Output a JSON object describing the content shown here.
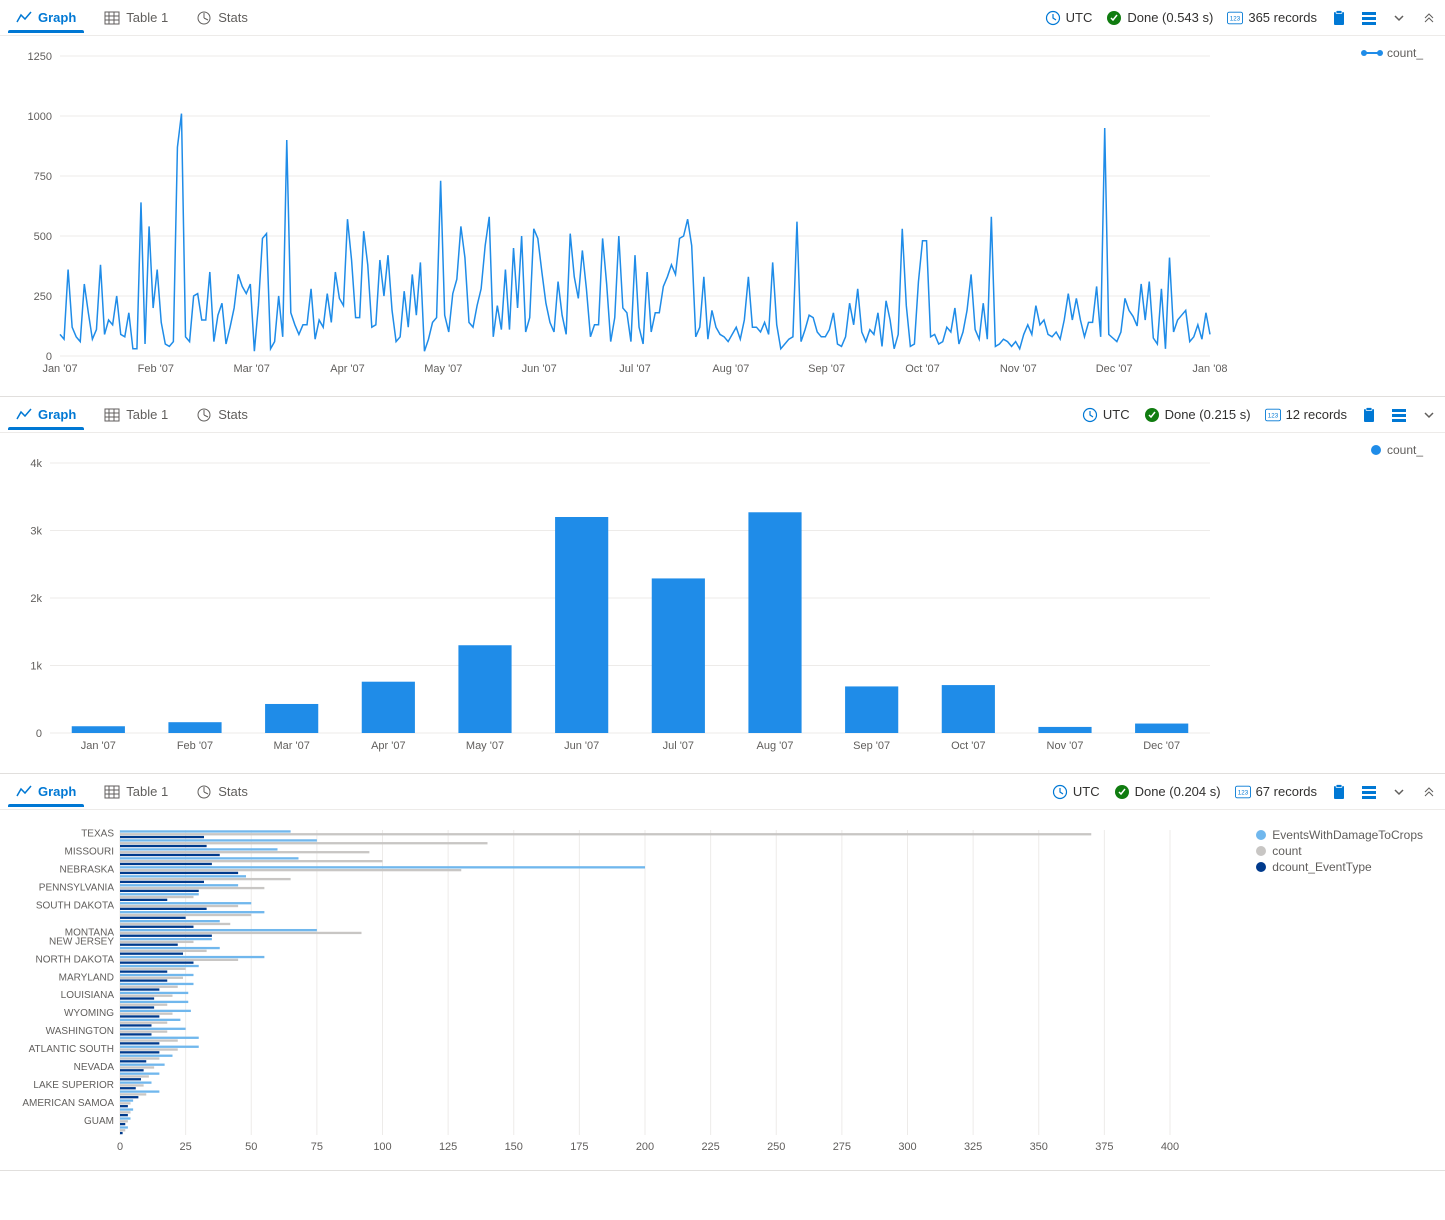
{
  "colors": {
    "primary": "#0078d4",
    "series_blue": "#1f8ce8",
    "series_light": "#70b7ed",
    "series_dark": "#003a8c",
    "series_grey": "#c8c6c4",
    "grid": "#edebe9",
    "text_muted": "#605e5c",
    "success": "#107c10"
  },
  "toolbar": {
    "graph_tab": "Graph",
    "table_tab": "Table 1",
    "stats_tab": "Stats",
    "tz": "UTC"
  },
  "panel1": {
    "done": "Done (0.543 s)",
    "records": "365 records",
    "legend": [
      "count_"
    ],
    "chart": {
      "type": "line",
      "ylim": [
        0,
        1250
      ],
      "ytick_step": 250,
      "x_labels": [
        "Jan '07",
        "Feb '07",
        "Mar '07",
        "Apr '07",
        "May '07",
        "Jun '07",
        "Jul '07",
        "Aug '07",
        "Sep '07",
        "Oct '07",
        "Nov '07",
        "Dec '07",
        "Jan '08"
      ],
      "values": [
        90,
        70,
        360,
        120,
        80,
        60,
        300,
        180,
        70,
        110,
        380,
        90,
        150,
        130,
        250,
        90,
        80,
        180,
        30,
        30,
        640,
        50,
        540,
        200,
        360,
        140,
        50,
        40,
        60,
        870,
        1010,
        80,
        60,
        250,
        260,
        150,
        150,
        350,
        60,
        170,
        220,
        50,
        120,
        200,
        340,
        290,
        260,
        300,
        20,
        210,
        490,
        510,
        30,
        60,
        250,
        80,
        900,
        180,
        130,
        90,
        130,
        130,
        280,
        70,
        150,
        120,
        260,
        140,
        350,
        240,
        210,
        570,
        400,
        160,
        160,
        520,
        380,
        120,
        130,
        400,
        250,
        420,
        190,
        60,
        80,
        270,
        120,
        340,
        170,
        390,
        20,
        70,
        140,
        160,
        730,
        170,
        100,
        260,
        320,
        540,
        410,
        140,
        120,
        210,
        280,
        460,
        580,
        80,
        210,
        110,
        360,
        110,
        450,
        200,
        500,
        100,
        160,
        530,
        490,
        350,
        220,
        140,
        100,
        310,
        170,
        90,
        510,
        330,
        240,
        440,
        280,
        80,
        130,
        130,
        490,
        300,
        60,
        160,
        500,
        200,
        180,
        60,
        420,
        120,
        50,
        350,
        100,
        180,
        180,
        290,
        330,
        380,
        340,
        490,
        500,
        570,
        460,
        80,
        120,
        330,
        70,
        190,
        120,
        90,
        80,
        60,
        90,
        120,
        70,
        150,
        330,
        120,
        120,
        100,
        140,
        90,
        390,
        130,
        30,
        50,
        70,
        80,
        560,
        60,
        110,
        170,
        160,
        100,
        80,
        80,
        110,
        180,
        50,
        40,
        80,
        220,
        130,
        280,
        100,
        60,
        110,
        90,
        180,
        40,
        230,
        150,
        30,
        90,
        530,
        210,
        40,
        50,
        310,
        480,
        480,
        80,
        90,
        50,
        60,
        120,
        100,
        200,
        50,
        100,
        190,
        340,
        110,
        70,
        220,
        70,
        580,
        40,
        50,
        70,
        60,
        40,
        60,
        30,
        90,
        130,
        90,
        210,
        130,
        150,
        90,
        80,
        100,
        70,
        150,
        260,
        150,
        240,
        150,
        80,
        140,
        140,
        290,
        80,
        950,
        90,
        75,
        60,
        100,
        240,
        190,
        165,
        125,
        300,
        150,
        310,
        75,
        50,
        280,
        30,
        410,
        100,
        150,
        170,
        190,
        60,
        80,
        130,
        70,
        180,
        90
      ]
    }
  },
  "panel2": {
    "done": "Done (0.215 s)",
    "records": "12 records",
    "legend": [
      "count_"
    ],
    "chart": {
      "type": "bar",
      "ylim": [
        0,
        4000
      ],
      "ytick_labels": [
        "0",
        "1k",
        "2k",
        "3k",
        "4k"
      ],
      "categories": [
        "Jan '07",
        "Feb '07",
        "Mar '07",
        "Apr '07",
        "May '07",
        "Jun '07",
        "Jul '07",
        "Aug '07",
        "Sep '07",
        "Oct '07",
        "Nov '07",
        "Dec '07"
      ],
      "values": [
        100,
        160,
        430,
        760,
        1300,
        3200,
        2290,
        3270,
        690,
        710,
        90,
        140
      ],
      "bar_color": "#1f8ce8"
    }
  },
  "panel3": {
    "done": "Done (0.204 s)",
    "records": "67 records",
    "legend": [
      {
        "label": "EventsWithDamageToCrops",
        "color": "#70b7ed"
      },
      {
        "label": "count",
        "color": "#c8c6c4"
      },
      {
        "label": "dcount_EventType",
        "color": "#003a8c"
      }
    ],
    "chart": {
      "type": "hbar_grouped",
      "xlim": [
        0,
        400
      ],
      "xtick_step": 25,
      "categories": [
        "TEXAS",
        "",
        "MISSOURI",
        "",
        "NEBRASKA",
        "",
        "PENNSYLVANIA",
        "",
        "SOUTH DAKOTA",
        "",
        "",
        "MONTANA",
        "NEW JERSEY",
        "",
        "NORTH DAKOTA",
        "",
        "MARYLAND",
        "",
        "LOUISIANA",
        "",
        "WYOMING",
        "",
        "WASHINGTON",
        "",
        "ATLANTIC SOUTH",
        "",
        "NEVADA",
        "",
        "LAKE SUPERIOR",
        "",
        "AMERICAN SAMOA",
        "",
        "GUAM",
        ""
      ],
      "series": {
        "EventsWithDamageToCrops": [
          65,
          75,
          60,
          68,
          200,
          48,
          45,
          30,
          50,
          55,
          38,
          75,
          35,
          38,
          55,
          30,
          28,
          28,
          26,
          26,
          27,
          23,
          25,
          30,
          30,
          20,
          17,
          15,
          12,
          15,
          5,
          5,
          4,
          3
        ],
        "count": [
          370,
          140,
          95,
          100,
          130,
          65,
          55,
          28,
          45,
          50,
          42,
          92,
          28,
          33,
          45,
          25,
          24,
          22,
          20,
          18,
          20,
          18,
          18,
          22,
          22,
          15,
          13,
          11,
          9,
          10,
          4,
          4,
          3,
          2
        ],
        "dcount_EventType": [
          32,
          33,
          38,
          35,
          45,
          32,
          30,
          18,
          33,
          25,
          28,
          35,
          22,
          24,
          28,
          18,
          18,
          15,
          13,
          13,
          15,
          12,
          12,
          15,
          15,
          10,
          9,
          8,
          6,
          7,
          3,
          3,
          2,
          1
        ]
      }
    }
  }
}
